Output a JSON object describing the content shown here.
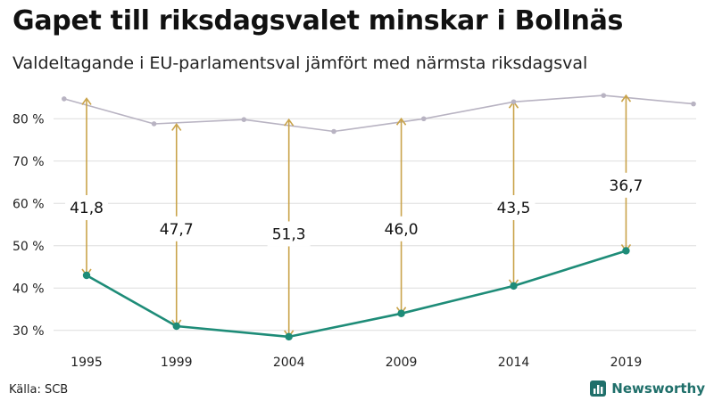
{
  "title": "Gapet till riksdagsvalet minskar i Bollnäs",
  "subtitle": "Valdeltagande i EU-parlamentsval jämfört med närmsta riksdagsval",
  "source": "Källa: SCB",
  "brand": "Newsworthy",
  "colors": {
    "eu": "#1e8c78",
    "riksdag": "#b8b3c2",
    "arrow": "#c9a34a",
    "grid": "#dddddd",
    "brand": "#1f6f6a"
  },
  "chart_data": {
    "type": "line",
    "ylim": [
      27,
      87
    ],
    "yticks": [
      30,
      40,
      50,
      60,
      70,
      80
    ],
    "ytick_labels": [
      "30 %",
      "40 %",
      "50 %",
      "60 %",
      "70 %",
      "80 %"
    ],
    "xlim": [
      1995,
      2022
    ],
    "xticks": [
      1995,
      1999,
      2004,
      2009,
      2014,
      2019
    ],
    "xtick_labels": [
      "1995",
      "1999",
      "2004",
      "2009",
      "2014",
      "2019"
    ],
    "series": [
      {
        "key": "riksdag",
        "x": [
          1994,
          1998,
          2002,
          2006,
          2010,
          2014,
          2018,
          2022
        ],
        "values": [
          84.7,
          78.8,
          79.8,
          77.0,
          80.0,
          84.0,
          85.5,
          83.5
        ]
      },
      {
        "key": "eu",
        "x": [
          1995,
          1999,
          2004,
          2009,
          2014,
          2019
        ],
        "values": [
          43.0,
          31.0,
          28.5,
          34.0,
          40.5,
          48.8
        ]
      }
    ],
    "gaps": [
      {
        "x": 1995,
        "from": 43.0,
        "to": 84.8,
        "label": "41,8",
        "label_y": 59.0
      },
      {
        "x": 1999,
        "from": 31.0,
        "to": 78.7,
        "label": "47,7",
        "label_y": 54.0
      },
      {
        "x": 2004,
        "from": 28.5,
        "to": 79.8,
        "label": "51,3",
        "label_y": 52.8
      },
      {
        "x": 2009,
        "from": 34.0,
        "to": 80.0,
        "label": "46,0",
        "label_y": 54.0
      },
      {
        "x": 2014,
        "from": 40.5,
        "to": 84.0,
        "label": "43,5",
        "label_y": 59.0
      },
      {
        "x": 2019,
        "from": 48.8,
        "to": 85.5,
        "label": "36,7",
        "label_y": 64.3
      }
    ]
  }
}
